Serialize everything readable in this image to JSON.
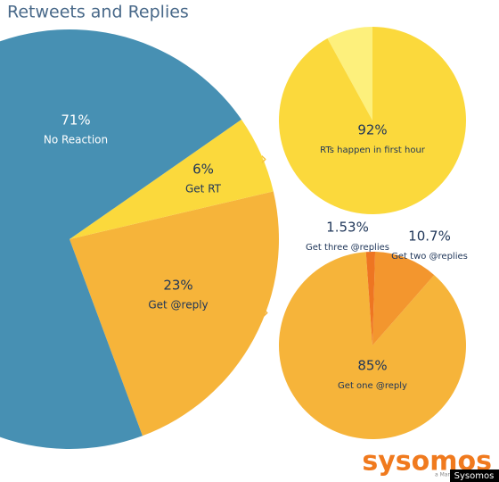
{
  "chart_data": [
    {
      "type": "pie",
      "title": "Retweets and Replies",
      "categories": [
        "No Reaction",
        "Get RT",
        "Get @reply"
      ],
      "values": [
        71,
        6,
        23
      ],
      "value_labels": [
        "71%",
        "6%",
        "23%"
      ],
      "colors": [
        "#4790b3",
        "#fbd93c",
        "#f6b43a"
      ]
    },
    {
      "type": "pie",
      "categories": [
        "RTs happen in first hour",
        null
      ],
      "values": [
        92,
        8
      ],
      "value_labels": [
        "92%",
        null
      ],
      "colors": [
        "#fbd93c",
        "#fdf07c"
      ]
    },
    {
      "type": "pie",
      "categories": [
        "Get three @replies",
        "Get two @replies",
        "Get one @reply"
      ],
      "values": [
        1.53,
        10.7,
        85
      ],
      "value_labels": [
        "1.53%",
        "10.7%",
        "85%"
      ],
      "colors": [
        "#ee7522",
        "#f3962e",
        "#f6b43a"
      ]
    }
  ],
  "branding": {
    "logo": "sysomos",
    "tagline": "a Marketwire Company",
    "credit": "Sysomos"
  }
}
